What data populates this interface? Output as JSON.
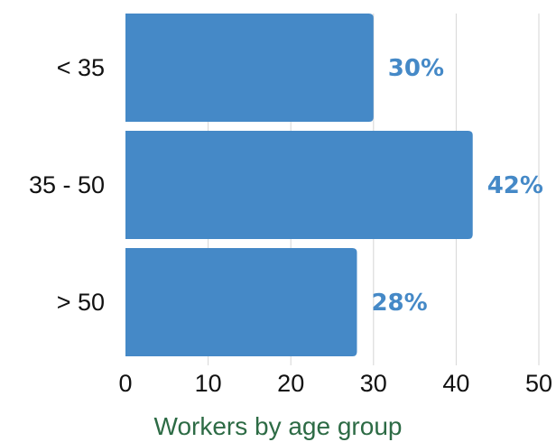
{
  "chart_data": {
    "type": "bar",
    "orientation": "horizontal",
    "categories": [
      "< 35",
      "35 - 50",
      "> 50"
    ],
    "values": [
      30,
      42,
      28
    ],
    "data_labels": [
      "30%",
      "42%",
      "28%"
    ],
    "xlabel": "Workers by age group",
    "xlim": [
      0,
      50
    ],
    "xticks": [
      0,
      10,
      20,
      30,
      40,
      50
    ],
    "xtick_labels": [
      "0",
      "10",
      "20",
      "30",
      "40",
      "50"
    ],
    "grid": "vertical",
    "colors": {
      "bar": "#4589c7",
      "data_label": "#4589c7",
      "axis_title": "#2d6b45",
      "grid": "#d6d6d6",
      "tick_label": "#111111"
    }
  }
}
